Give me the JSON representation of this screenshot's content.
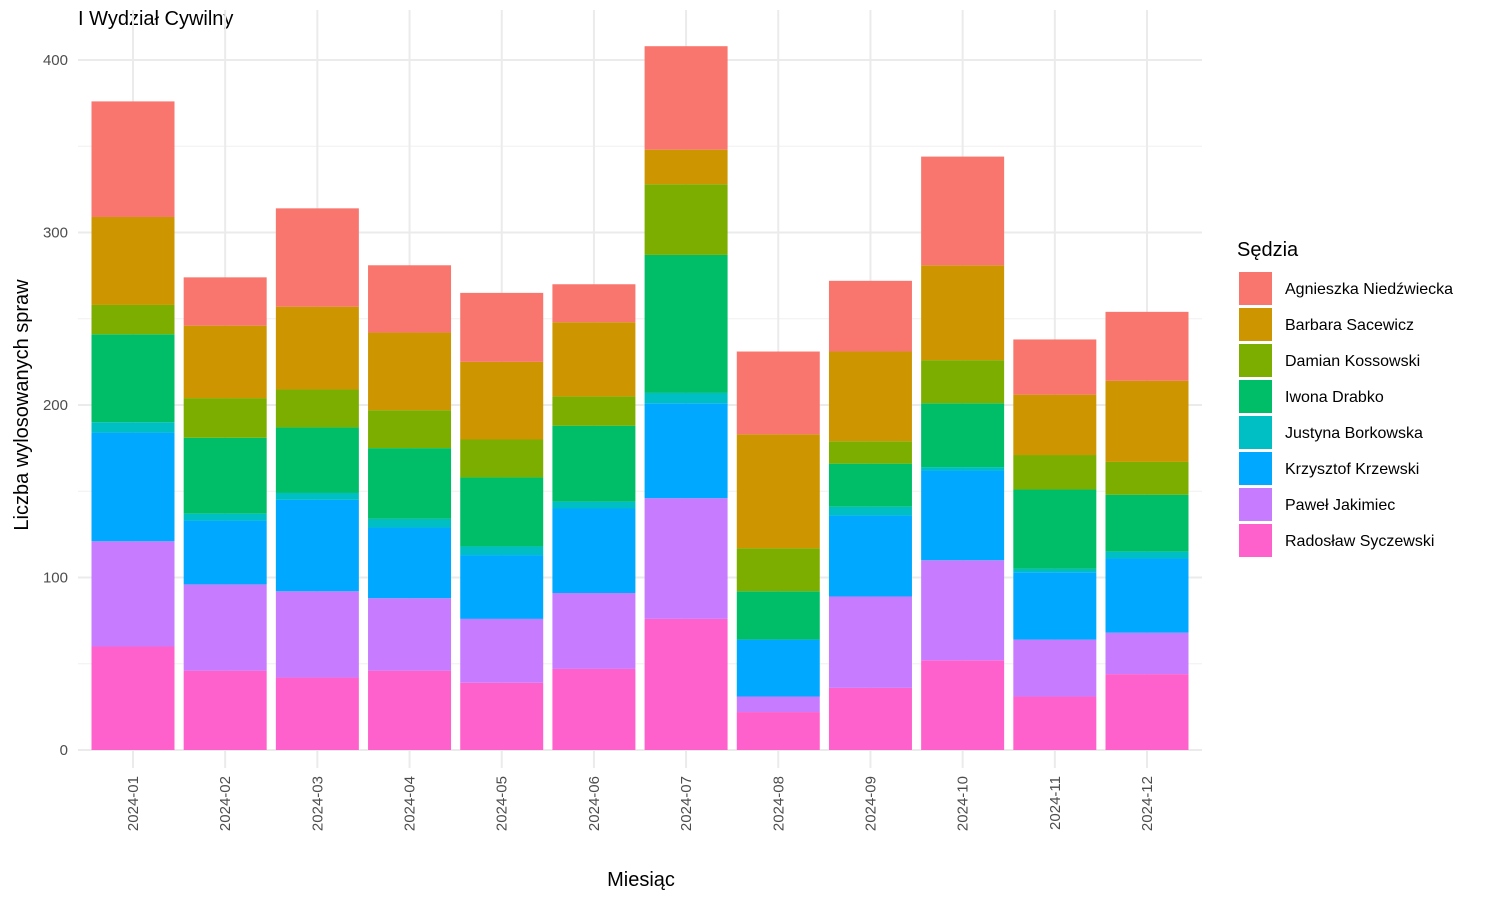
{
  "chart_data": {
    "type": "bar",
    "stacked": true,
    "title": "I Wydział Cywilny",
    "xlabel": "Miesiąc",
    "ylabel": "Liczba wylosowanych spraw",
    "ylim": [
      0,
      410
    ],
    "yticks": [
      0,
      100,
      200,
      300,
      400
    ],
    "grid": true,
    "legend_title": "Sędzia",
    "legend_position": "right",
    "categories": [
      "2024-01",
      "2024-02",
      "2024-03",
      "2024-04",
      "2024-05",
      "2024-06",
      "2024-07",
      "2024-08",
      "2024-09",
      "2024-10",
      "2024-11",
      "2024-12"
    ],
    "series": [
      {
        "name": "Radosław Syczewski",
        "color": "#FF61CC",
        "values": [
          60,
          46,
          42,
          46,
          39,
          47,
          76,
          22,
          36,
          52,
          31,
          44
        ]
      },
      {
        "name": "Paweł Jakimiec",
        "color": "#C77CFF",
        "values": [
          61,
          50,
          50,
          42,
          37,
          44,
          70,
          9,
          53,
          58,
          33,
          24
        ]
      },
      {
        "name": "Krzysztof Krzewski",
        "color": "#00A9FF",
        "values": [
          63,
          37,
          53,
          41,
          37,
          49,
          55,
          33,
          47,
          52,
          39,
          43
        ]
      },
      {
        "name": "Justyna Borkowska",
        "color": "#00BFC4",
        "values": [
          6,
          4,
          4,
          5,
          5,
          4,
          6,
          0,
          5,
          2,
          2,
          4
        ]
      },
      {
        "name": "Iwona Drabko",
        "color": "#00BE67",
        "values": [
          51,
          44,
          38,
          41,
          40,
          44,
          80,
          28,
          25,
          37,
          46,
          33
        ]
      },
      {
        "name": "Damian Kossowski",
        "color": "#7CAE00",
        "values": [
          17,
          23,
          22,
          22,
          22,
          17,
          41,
          25,
          13,
          25,
          20,
          19
        ]
      },
      {
        "name": "Barbara Sacewicz",
        "color": "#CD9600",
        "values": [
          51,
          42,
          48,
          45,
          45,
          43,
          20,
          66,
          52,
          55,
          35,
          47
        ]
      },
      {
        "name": "Agnieszka Niedźwiecka",
        "color": "#F8766D",
        "values": [
          67,
          28,
          57,
          39,
          40,
          22,
          60,
          48,
          41,
          63,
          32,
          40
        ]
      }
    ],
    "legend_order": [
      "Agnieszka Niedźwiecka",
      "Barbara Sacewicz",
      "Damian Kossowski",
      "Iwona Drabko",
      "Justyna Borkowska",
      "Krzysztof Krzewski",
      "Paweł Jakimiec",
      "Radosław Syczewski"
    ]
  }
}
